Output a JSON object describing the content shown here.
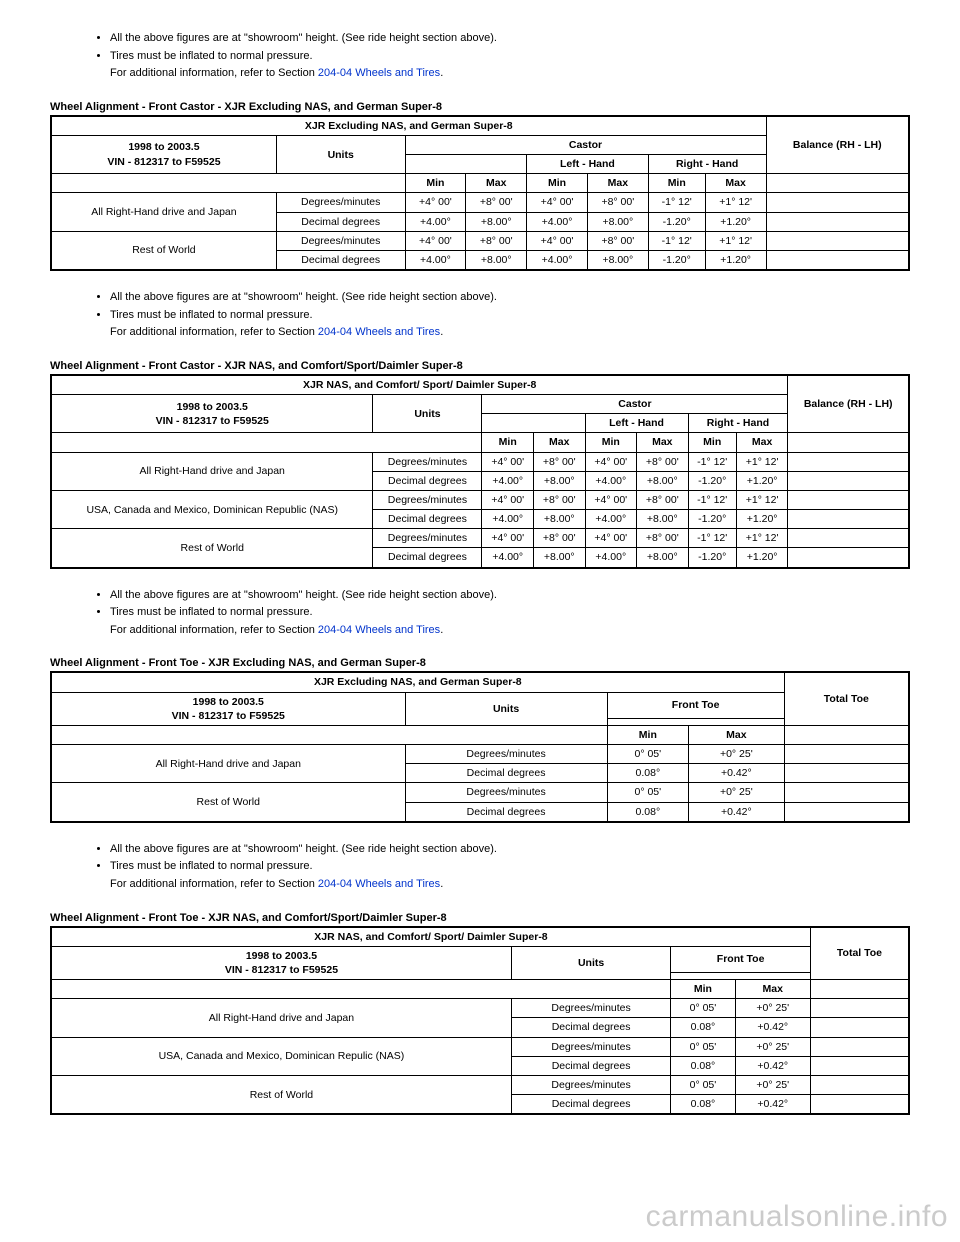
{
  "notes": {
    "line1": "All the above figures are at \"showroom\" height. (See ride height section above).",
    "line2": "Tires must be inflated to normal pressure.",
    "line3_pre": "For additional information, refer to Section ",
    "link_text": "204-04 Wheels and Tires",
    "period": "."
  },
  "common_headers": {
    "year_range": "1998 to 2003.5",
    "vin_range": "VIN - 812317 to F59525",
    "units": "Units",
    "min": "Min",
    "max": "Max",
    "castor": "Castor",
    "left_hand": "Left - Hand",
    "right_hand": "Right - Hand",
    "balance": "Balance (RH - LH)",
    "front_toe": "Front Toe",
    "total_toe": "Total Toe"
  },
  "table1": {
    "title": "Wheel Alignment - Front Castor - XJR Excluding NAS, and German Super-8",
    "main_header": "XJR Excluding NAS, and German Super-8",
    "rows": [
      {
        "region": "All Right-Hand drive and Japan",
        "units": "Degrees/minutes",
        "v": [
          "+4° 00'",
          "+8° 00'",
          "+4° 00'",
          "+8° 00'",
          "-1° 12'",
          "+1° 12'"
        ]
      },
      {
        "region": "",
        "units": "Decimal degrees",
        "v": [
          "+4.00°",
          "+8.00°",
          "+4.00°",
          "+8.00°",
          "-1.20°",
          "+1.20°"
        ]
      },
      {
        "region": "Rest of World",
        "units": "Degrees/minutes",
        "v": [
          "+4° 00'",
          "+8° 00'",
          "+4° 00'",
          "+8° 00'",
          "-1° 12'",
          "+1° 12'"
        ]
      },
      {
        "region": "",
        "units": "Decimal degrees",
        "v": [
          "+4.00°",
          "+8.00°",
          "+4.00°",
          "+8.00°",
          "-1.20°",
          "+1.20°"
        ]
      }
    ]
  },
  "table2": {
    "title": "Wheel Alignment - Front Castor - XJR NAS, and Comfort/Sport/Daimler Super-8",
    "main_header": "XJR NAS, and Comfort/ Sport/ Daimler Super-8",
    "rows": [
      {
        "region": "All Right-Hand drive and Japan",
        "units": "Degrees/minutes",
        "v": [
          "+4° 00'",
          "+8° 00'",
          "+4° 00'",
          "+8° 00'",
          "-1° 12'",
          "+1° 12'"
        ]
      },
      {
        "region": "",
        "units": "Decimal degrees",
        "v": [
          "+4.00°",
          "+8.00°",
          "+4.00°",
          "+8.00°",
          "-1.20°",
          "+1.20°"
        ]
      },
      {
        "region": "USA, Canada and Mexico, Dominican Republic (NAS)",
        "units": "Degrees/minutes",
        "v": [
          "+4° 00'",
          "+8° 00'",
          "+4° 00'",
          "+8° 00'",
          "-1° 12'",
          "+1° 12'"
        ]
      },
      {
        "region": "",
        "units": "Decimal degrees",
        "v": [
          "+4.00°",
          "+8.00°",
          "+4.00°",
          "+8.00°",
          "-1.20°",
          "+1.20°"
        ]
      },
      {
        "region": "Rest of World",
        "units": "Degrees/minutes",
        "v": [
          "+4° 00'",
          "+8° 00'",
          "+4° 00'",
          "+8° 00'",
          "-1° 12'",
          "+1° 12'"
        ]
      },
      {
        "region": "",
        "units": "Decimal degrees",
        "v": [
          "+4.00°",
          "+8.00°",
          "+4.00°",
          "+8.00°",
          "-1.20°",
          "+1.20°"
        ]
      }
    ]
  },
  "table3": {
    "title": "Wheel Alignment - Front Toe - XJR Excluding NAS, and German Super-8",
    "main_header": "XJR Excluding NAS, and German Super-8",
    "rows": [
      {
        "region": "All Right-Hand drive and Japan",
        "units": "Degrees/minutes",
        "v": [
          "0° 05'",
          "+0° 25'"
        ]
      },
      {
        "region": "",
        "units": "Decimal degrees",
        "v": [
          "0.08°",
          "+0.42°"
        ]
      },
      {
        "region": "Rest of World",
        "units": "Degrees/minutes",
        "v": [
          "0° 05'",
          "+0° 25'"
        ]
      },
      {
        "region": "",
        "units": "Decimal degrees",
        "v": [
          "0.08°",
          "+0.42°"
        ]
      }
    ]
  },
  "table4": {
    "title": "Wheel Alignment - Front Toe - XJR NAS, and Comfort/Sport/Daimler Super-8",
    "main_header": "XJR NAS, and Comfort/ Sport/ Daimler Super-8",
    "rows": [
      {
        "region": "All Right-Hand drive and Japan",
        "units": "Degrees/minutes",
        "v": [
          "0° 05'",
          "+0° 25'"
        ]
      },
      {
        "region": "",
        "units": "Decimal degrees",
        "v": [
          "0.08°",
          "+0.42°"
        ]
      },
      {
        "region": "USA, Canada and Mexico, Dominican Repulic (NAS)",
        "units": "Degrees/minutes",
        "v": [
          "0° 05'",
          "+0° 25'"
        ]
      },
      {
        "region": "",
        "units": "Decimal degrees",
        "v": [
          "0.08°",
          "+0.42°"
        ]
      },
      {
        "region": "Rest of World",
        "units": "Degrees/minutes",
        "v": [
          "0° 05'",
          "+0° 25'"
        ]
      },
      {
        "region": "",
        "units": "Decimal degrees",
        "v": [
          "0.08°",
          "+0.42°"
        ]
      }
    ]
  },
  "watermark": "carmanualsonline.info"
}
